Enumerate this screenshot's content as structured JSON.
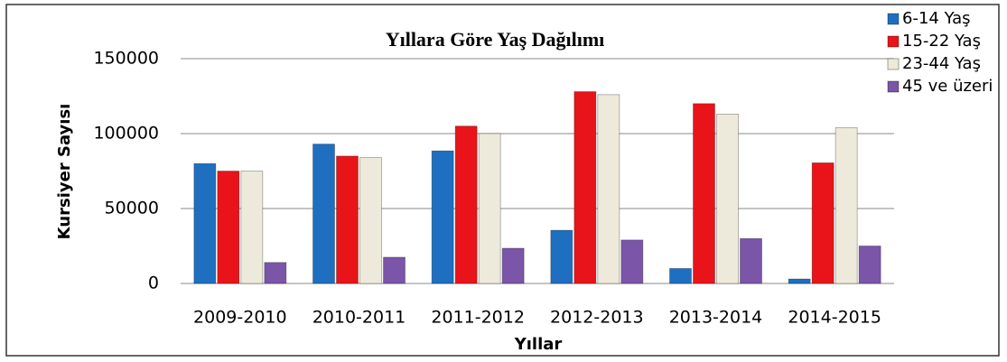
{
  "chart_data": {
    "type": "bar",
    "title": "Yıllara Göre Yaş Dağılımı",
    "x_label": "Yıllar",
    "y_label": "Kursiyer Sayısı",
    "categories": [
      "2009-2010",
      "2010-2011",
      "2011-2012",
      "2012-2013",
      "2013-2014",
      "2014-2015"
    ],
    "series": [
      {
        "name": "6-14 Yaş",
        "color": "#1f6fc0",
        "values": [
          80000,
          93000,
          88500,
          35500,
          10000,
          3000
        ]
      },
      {
        "name": "15-22 Yaş",
        "color": "#e8141a",
        "values": [
          75000,
          85000,
          105000,
          128000,
          120000,
          80500
        ]
      },
      {
        "name": "23-44 Yaş",
        "color": "#eeeadb",
        "values": [
          75000,
          84000,
          100000,
          126000,
          113000,
          104000
        ]
      },
      {
        "name": "45 ve üzeri",
        "color": "#7a55a8",
        "values": [
          14000,
          17500,
          23500,
          29000,
          30000,
          25000
        ]
      }
    ],
    "ylim": [
      0,
      150000
    ],
    "yticks": [
      0,
      50000,
      100000,
      150000
    ],
    "grid": true,
    "legend": "top-right"
  }
}
